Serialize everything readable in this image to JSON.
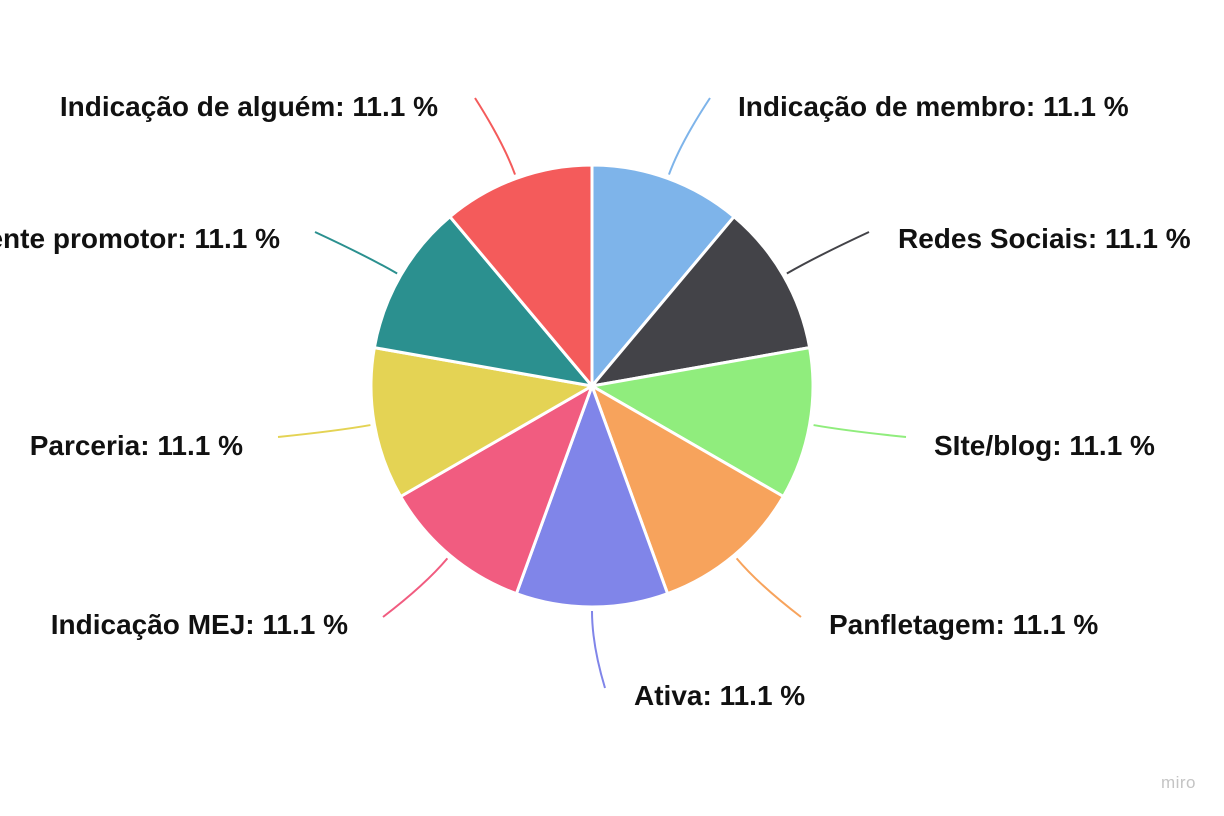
{
  "watermark": "miro",
  "chart_data": {
    "type": "pie",
    "title": "",
    "value_suffix": " %",
    "slices": [
      {
        "label": "Indicação de membro",
        "value": 11.1,
        "color": "#7eb4ea"
      },
      {
        "label": "Redes Sociais",
        "value": 11.1,
        "color": "#434348"
      },
      {
        "label": "SIte/blog",
        "value": 11.1,
        "color": "#90ed7d"
      },
      {
        "label": "Panfletagem",
        "value": 11.1,
        "color": "#f7a35c"
      },
      {
        "label": "Ativa",
        "value": 11.1,
        "color": "#8085e9"
      },
      {
        "label": "Indicação MEJ",
        "value": 11.1,
        "color": "#f15c80"
      },
      {
        "label": "Parceria",
        "value": 11.1,
        "color": "#e4d354"
      },
      {
        "label": "Cliente promotor",
        "value": 11.1,
        "color": "#2b908f"
      },
      {
        "label": "Indicação de alguém",
        "value": 11.1,
        "color": "#f45b5b"
      }
    ]
  }
}
